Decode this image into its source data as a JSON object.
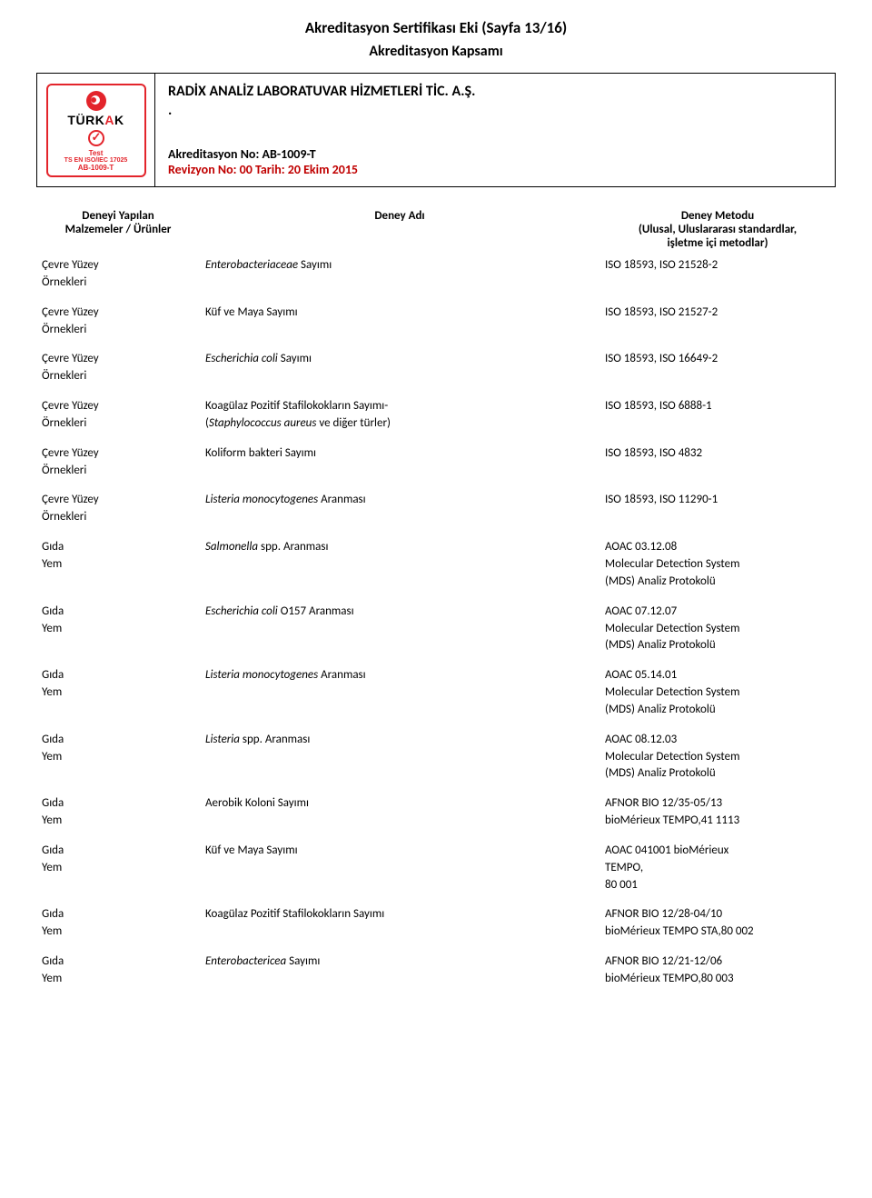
{
  "header": {
    "title_main": "Akreditasyon Sertifikası Eki (Sayfa 13/16)",
    "title_sub": "Akreditasyon Kapsamı",
    "company": "RADİX ANALİZ LABORATUVAR HİZMETLERİ TİC. A.Ş.",
    "company_dot": ".",
    "accr_no": "Akreditasyon No: AB-1009-T",
    "rev_no": "Revizyon No: 00 Tarih: 20 Ekim 2015",
    "logo": {
      "name_part1": "TÜRK",
      "name_part2": "A",
      "name_part3": "K",
      "test": "Test",
      "std": "TS EN ISO/IEC 17025",
      "ab": "AB-1009-T"
    }
  },
  "columns": {
    "c1a": "Deneyi Yapılan",
    "c1b": "Malzemeler / Ürünler",
    "c2": "Deney Adı",
    "c3a": "Deney Metodu",
    "c3b": "(Ulusal, Uluslararası standardlar,",
    "c3c": "işletme içi metodlar)"
  },
  "rows": [
    {
      "mat1": "Çevre Yüzey",
      "mat2": "Örnekleri",
      "test_html": "<span class='italic'>Enterobacteriaceae</span> Sayımı",
      "method": "ISO 18593, ISO 21528-2"
    },
    {
      "mat1": "Çevre Yüzey",
      "mat2": "Örnekleri",
      "test_html": "Küf ve Maya Sayımı",
      "method": "ISO 18593, ISO 21527-2"
    },
    {
      "mat1": "Çevre Yüzey",
      "mat2": "Örnekleri",
      "test_html": "<span class='italic'>Escherichia coli</span> Sayımı",
      "method": "ISO 18593, ISO 16649-2"
    },
    {
      "mat1": "Çevre Yüzey",
      "mat2": "Örnekleri",
      "test_html": "Koagülaz Pozitif Stafilokokların Sayımı-<br>(<span class='italic'>Staphylococcus aureus</span> ve diğer türler)",
      "method": "ISO 18593, ISO 6888-1"
    },
    {
      "mat1": "Çevre Yüzey",
      "mat2": "Örnekleri",
      "test_html": "Koliform bakteri Sayımı",
      "method": "ISO 18593, ISO 4832"
    },
    {
      "mat1": "Çevre Yüzey",
      "mat2": "Örnekleri",
      "test_html": "<span class='italic'>Listeria monocytogenes</span> Aranması",
      "method": "ISO 18593, ISO 11290-1"
    },
    {
      "mat1": "Gıda",
      "mat2": "Yem",
      "test_html": "<span class='italic'>Salmonella</span> spp. Aranması",
      "method": "AOAC 03.12.08<br>Molecular Detection System<br>(MDS) Analiz Protokolü"
    },
    {
      "mat1": "Gıda",
      "mat2": "Yem",
      "test_html": "<span class='italic'>Escherichia coli</span> O157 Aranması",
      "method": "AOAC 07.12.07<br>Molecular Detection System<br>(MDS) Analiz Protokolü"
    },
    {
      "mat1": "Gıda",
      "mat2": "Yem",
      "test_html": "<span class='italic'>Listeria monocytogenes</span> Aranması",
      "method": "AOAC 05.14.01<br>Molecular Detection System<br>(MDS) Analiz Protokolü"
    },
    {
      "mat1": "Gıda",
      "mat2": "Yem",
      "test_html": "<span class='italic'>Listeria</span> spp. Aranması",
      "method": "AOAC 08.12.03<br>Molecular Detection System<br>(MDS) Analiz Protokolü"
    },
    {
      "mat1": "Gıda",
      "mat2": "Yem",
      "test_html": "Aerobik Koloni Sayımı",
      "method": "AFNOR BIO 12/35-05/13<br>bioMérieux TEMPO,41 1113"
    },
    {
      "mat1": "Gıda",
      "mat2": "Yem",
      "test_html": "Küf ve Maya Sayımı",
      "method": "AOAC 041001 bioMérieux<br>TEMPO,<br>80 001"
    },
    {
      "mat1": "Gıda",
      "mat2": "Yem",
      "test_html": "Koagülaz Pozitif Stafilokokların Sayımı",
      "method": "AFNOR BIO 12/28-04/10<br>bioMérieux TEMPO STA,80 002"
    },
    {
      "mat1": "Gıda",
      "mat2": "Yem",
      "test_html": "<span class='italic'>Enterobactericea</span> Sayımı",
      "method": "AFNOR BIO 12/21-12/06<br>bioMérieux TEMPO,80 003"
    }
  ]
}
